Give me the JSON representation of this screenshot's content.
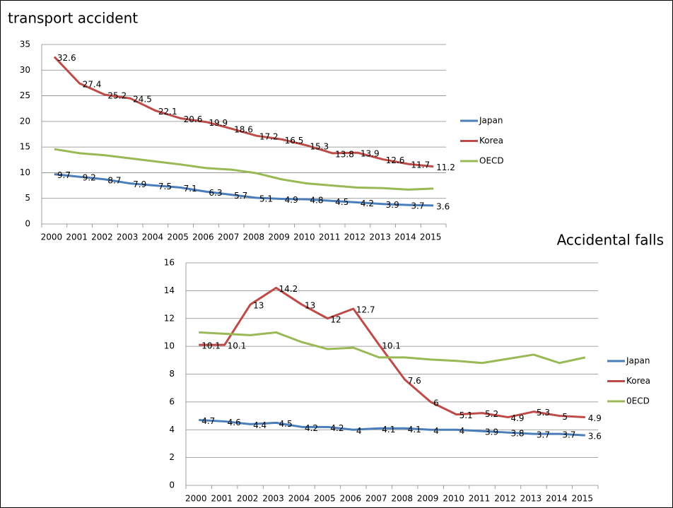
{
  "chart_data": [
    {
      "type": "line",
      "title": "transport accident",
      "categories": [
        "2000",
        "2001",
        "2002",
        "2003",
        "2004",
        "2005",
        "2006",
        "2007",
        "2008",
        "2009",
        "2010",
        "2011",
        "2012",
        "2013",
        "2014",
        "2015"
      ],
      "ylim": [
        0,
        35
      ],
      "yticks": [
        0,
        5,
        10,
        15,
        20,
        25,
        30,
        35
      ],
      "grid": true,
      "series": [
        {
          "name": "Japan",
          "color": "#4a7ebb",
          "values": [
            9.7,
            9.2,
            8.7,
            7.9,
            7.5,
            7.1,
            6.3,
            5.7,
            5.1,
            4.9,
            4.8,
            4.5,
            4.2,
            3.9,
            3.7,
            3.6
          ],
          "show_labels": true
        },
        {
          "name": "Korea",
          "color": "#be4b48",
          "values": [
            32.6,
            27.4,
            25.2,
            24.5,
            22.1,
            20.6,
            19.9,
            18.6,
            17.2,
            16.5,
            15.3,
            13.8,
            13.9,
            12.6,
            11.7,
            11.2
          ],
          "show_labels": true
        },
        {
          "name": "OECD",
          "color": "#98b954",
          "values": [
            14.6,
            13.8,
            13.4,
            12.8,
            12.2,
            11.6,
            10.9,
            10.6,
            9.9,
            8.7,
            7.9,
            7.5,
            7.1,
            7.0,
            6.7,
            6.9
          ],
          "show_labels": false
        }
      ]
    },
    {
      "type": "line",
      "title": "Accidental falls",
      "categories": [
        "2000",
        "2001",
        "2002",
        "2003",
        "2004",
        "2005",
        "2006",
        "2007",
        "2008",
        "2009",
        "2010",
        "2011",
        "2012",
        "2013",
        "2014",
        "2015"
      ],
      "ylim": [
        0,
        16
      ],
      "yticks": [
        0,
        2,
        4,
        6,
        8,
        10,
        12,
        14,
        16
      ],
      "grid": true,
      "series": [
        {
          "name": "Japan",
          "color": "#4a7ebb",
          "values": [
            4.7,
            4.6,
            4.4,
            4.5,
            4.2,
            4.2,
            4,
            4.1,
            4.1,
            4,
            4,
            3.9,
            3.8,
            3.7,
            3.7,
            3.6
          ],
          "show_labels": true
        },
        {
          "name": "Korea",
          "color": "#be4b48",
          "values": [
            10.1,
            10.1,
            13,
            14.2,
            13,
            12,
            12.7,
            10.1,
            7.6,
            6,
            5.1,
            5.2,
            4.9,
            5.3,
            5,
            4.9
          ],
          "show_labels": true
        },
        {
          "name": "0ECD",
          "color": "#98b954",
          "values": [
            11.0,
            10.9,
            10.8,
            11.0,
            10.3,
            9.8,
            9.9,
            9.2,
            9.2,
            9.05,
            8.95,
            8.8,
            9.1,
            9.4,
            8.8,
            9.2
          ],
          "show_labels": false
        }
      ]
    }
  ]
}
